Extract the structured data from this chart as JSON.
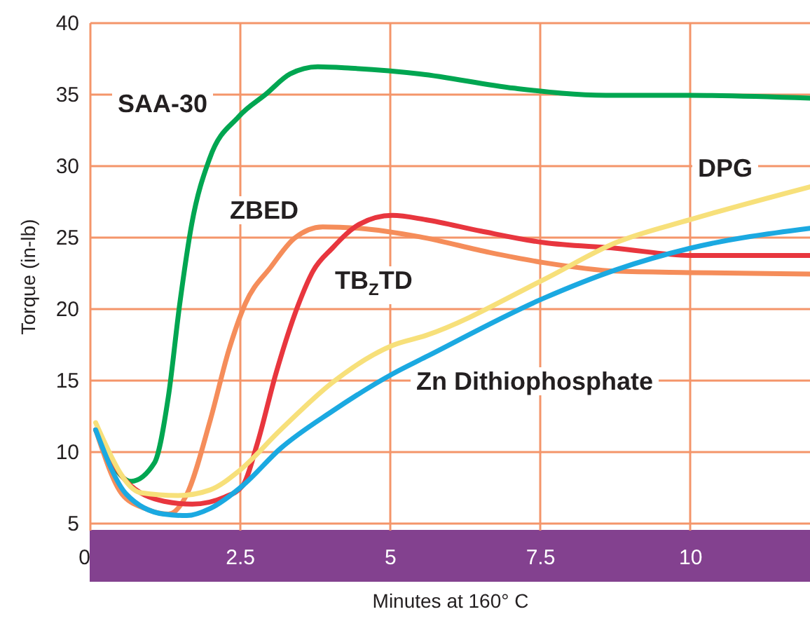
{
  "chart_data": {
    "type": "line",
    "xlabel": "Minutes at 160° C",
    "ylabel": "Torque (in-lb)",
    "xlim": [
      0,
      12
    ],
    "xticks": [
      0,
      2.5,
      5,
      7.5,
      10
    ],
    "ylim": [
      4.5,
      40
    ],
    "yticks": [
      5,
      10,
      15,
      20,
      25,
      30,
      35,
      40
    ],
    "grid": true,
    "marker": "none",
    "line_style": "solid",
    "series": [
      {
        "name": "SAA-30",
        "color": "#00a651",
        "x": [
          0.1,
          0.69,
          1.08,
          1.31,
          1.5,
          1.7,
          2.0,
          2.48,
          2.94,
          3.34,
          3.8,
          4.35,
          5.5,
          7.07,
          8.6,
          10,
          12
        ],
        "values": [
          11.5,
          7.9,
          9.2,
          13.8,
          20.3,
          25.9,
          30.5,
          33.4,
          35,
          36.4,
          36.9,
          36.8,
          36.4,
          35.4,
          34.9,
          34.9,
          34.7
        ]
      },
      {
        "name": "ZBED",
        "color": "#f58d5a",
        "x": [
          0.1,
          0.54,
          0.92,
          1.31,
          1.62,
          2.01,
          2.32,
          2.59,
          3.02,
          3.41,
          3.88,
          4.5,
          5.5,
          6.67,
          7.56,
          8.77,
          10,
          12
        ],
        "values": [
          11.5,
          7.0,
          6.0,
          5.6,
          7.0,
          12.2,
          17.1,
          20.3,
          22.9,
          24.9,
          25.7,
          25.6,
          25.0,
          23.9,
          23.2,
          22.6,
          22.5,
          22.4
        ]
      },
      {
        "name": "TB$_{Z}$TD",
        "color": "#e8363e",
        "x": [
          0.1,
          0.61,
          1.24,
          1.71,
          2.25,
          2.55,
          2.79,
          3.1,
          3.48,
          3.72,
          4.04,
          4.5,
          5.04,
          5.6,
          6.52,
          7.56,
          8.77,
          10,
          12
        ],
        "values": [
          11.5,
          7.9,
          6.5,
          6.3,
          6.8,
          7.6,
          10.5,
          15.4,
          20.3,
          22.6,
          24.2,
          25.9,
          26.5,
          26.2,
          25.4,
          24.6,
          24.2,
          23.7,
          23.7
        ]
      },
      {
        "name": "DPG",
        "color": "#f7e07a",
        "x": [
          0.1,
          0.85,
          1.47,
          2.01,
          2.48,
          3.18,
          4.04,
          5.04,
          5.6,
          7.56,
          8.77,
          10,
          12
        ],
        "values": [
          12,
          7.1,
          6.9,
          7.3,
          8.6,
          11.5,
          14.8,
          17.4,
          18.1,
          22,
          24.6,
          26.2,
          28.5
        ]
      },
      {
        "name": "Zn Dithiophosphate",
        "color": "#1ba9e1",
        "x": [
          0.1,
          0.61,
          1.24,
          1.62,
          2.01,
          2.55,
          3.18,
          4.04,
          5.04,
          5.6,
          7.56,
          8.77,
          10,
          12
        ],
        "values": [
          11.5,
          7.0,
          5.6,
          5.5,
          6.0,
          7.6,
          10.2,
          12.8,
          15.4,
          16.6,
          20.7,
          22.7,
          24.2,
          25.6
        ]
      }
    ]
  }
}
